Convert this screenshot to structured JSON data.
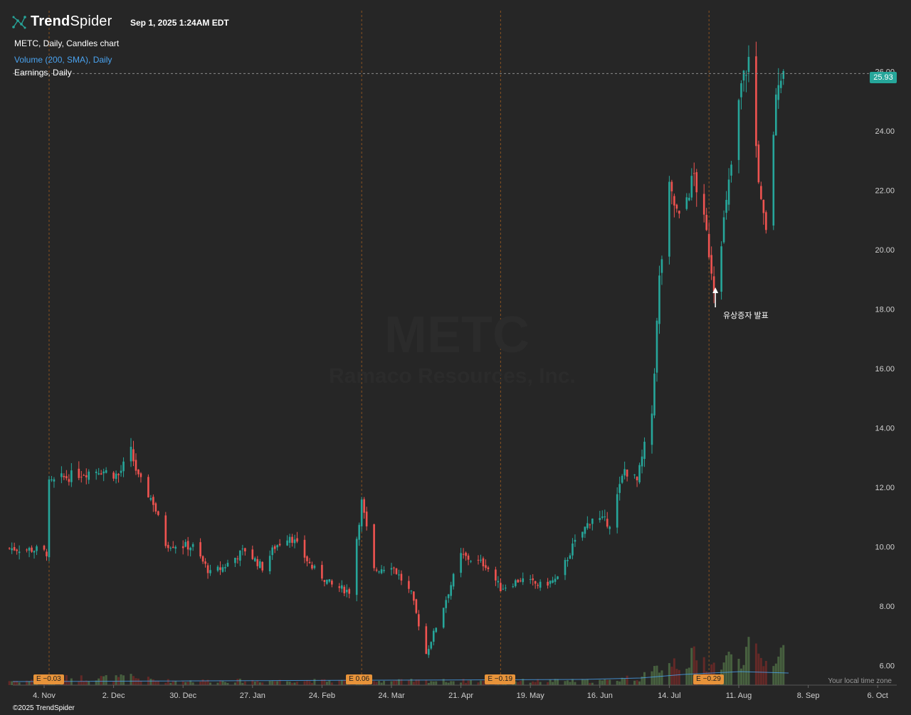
{
  "header": {
    "logo_bold": "Trend",
    "logo_light": "Spider",
    "datetime": "Sep 1, 2025 1:24AM EDT",
    "chart_title": "METC, Daily, Candles chart",
    "indicator_volume": "Volume (200, SMA), Daily",
    "indicator_earnings": "Earnings, Daily"
  },
  "watermark": {
    "symbol": "METC",
    "company": "Ramaco Resources, Inc."
  },
  "footer": {
    "copyright": "©2025 TrendSpider",
    "timezone_note": "Your local time zone"
  },
  "last_price_label": "25.93",
  "annotation": {
    "text": "유상증자 발표"
  },
  "earnings": [
    {
      "label": "E −0.03",
      "date": "2024-11-06"
    },
    {
      "label": "E 0.06",
      "date": "2025-03-12"
    },
    {
      "label": "E −0.19",
      "date": "2025-05-07"
    },
    {
      "label": "E −0.29",
      "date": "2025-07-30"
    }
  ],
  "colors": {
    "background": "#262626",
    "up": "#26a69a",
    "down": "#ef5350",
    "grid": "#3a3a3a",
    "earnings": "#e7933a",
    "volume_sma": "#4aa3f0"
  },
  "chart_data": {
    "type": "candlestick",
    "symbol": "METC",
    "interval": "Daily",
    "ylim": [
      5.6,
      27.2
    ],
    "yticks": [
      6,
      8,
      10,
      12,
      14,
      16,
      18,
      20,
      22,
      24,
      26
    ],
    "ytick_labels": [
      "6.00",
      "8.00",
      "10.00",
      "12.00",
      "14.00",
      "16.00",
      "18.00",
      "20.00",
      "22.00",
      "24.00",
      "26.00"
    ],
    "x_ticks": [
      {
        "label": "4. Nov",
        "date": "2024-11-04"
      },
      {
        "label": "2. Dec",
        "date": "2024-12-02"
      },
      {
        "label": "30. Dec",
        "date": "2024-12-30"
      },
      {
        "label": "27. Jan",
        "date": "2025-01-27"
      },
      {
        "label": "24. Feb",
        "date": "2025-02-24"
      },
      {
        "label": "24. Mar",
        "date": "2025-03-24"
      },
      {
        "label": "21. Apr",
        "date": "2025-04-21"
      },
      {
        "label": "19. May",
        "date": "2025-05-19"
      },
      {
        "label": "16. Jun",
        "date": "2025-06-16"
      },
      {
        "label": "14. Jul",
        "date": "2025-07-14"
      },
      {
        "label": "11. Aug",
        "date": "2025-08-11"
      },
      {
        "label": "8. Sep",
        "date": "2025-09-08"
      },
      {
        "label": "6. Oct",
        "date": "2025-10-06"
      }
    ],
    "x_start_date": "2024-10-21",
    "last_price": 25.93,
    "annotation_date": "2025-08-01",
    "closes": [
      {
        "d": "2024-10-21",
        "c": 9.95
      },
      {
        "d": "2024-11-01",
        "c": 9.9
      },
      {
        "d": "2024-11-05",
        "c": 9.8
      },
      {
        "d": "2024-11-06",
        "c": 12.1
      },
      {
        "d": "2024-11-11",
        "c": 12.3
      },
      {
        "d": "2024-11-20",
        "c": 12.5
      },
      {
        "d": "2024-11-26",
        "c": 12.6
      },
      {
        "d": "2024-12-04",
        "c": 12.4
      },
      {
        "d": "2024-12-09",
        "c": 13.2
      },
      {
        "d": "2024-12-12",
        "c": 12.3
      },
      {
        "d": "2024-12-18",
        "c": 11.5
      },
      {
        "d": "2024-12-23",
        "c": 10.1
      },
      {
        "d": "2025-01-03",
        "c": 10.0
      },
      {
        "d": "2025-01-10",
        "c": 9.1
      },
      {
        "d": "2025-01-15",
        "c": 9.3
      },
      {
        "d": "2025-01-24",
        "c": 9.9
      },
      {
        "d": "2025-01-31",
        "c": 9.3
      },
      {
        "d": "2025-02-05",
        "c": 10.0
      },
      {
        "d": "2025-02-11",
        "c": 10.4
      },
      {
        "d": "2025-02-20",
        "c": 9.3
      },
      {
        "d": "2025-02-28",
        "c": 8.7
      },
      {
        "d": "2025-03-07",
        "c": 8.5
      },
      {
        "d": "2025-03-12",
        "c": 11.5
      },
      {
        "d": "2025-03-17",
        "c": 9.2
      },
      {
        "d": "2025-03-24",
        "c": 9.4
      },
      {
        "d": "2025-04-01",
        "c": 8.4
      },
      {
        "d": "2025-04-07",
        "c": 6.4
      },
      {
        "d": "2025-04-14",
        "c": 8.0
      },
      {
        "d": "2025-04-21",
        "c": 9.7
      },
      {
        "d": "2025-05-01",
        "c": 9.4
      },
      {
        "d": "2025-05-07",
        "c": 8.6
      },
      {
        "d": "2025-05-15",
        "c": 8.9
      },
      {
        "d": "2025-05-23",
        "c": 8.7
      },
      {
        "d": "2025-05-30",
        "c": 8.9
      },
      {
        "d": "2025-06-05",
        "c": 10.0
      },
      {
        "d": "2025-06-13",
        "c": 11.0
      },
      {
        "d": "2025-06-20",
        "c": 10.8
      },
      {
        "d": "2025-06-26",
        "c": 12.6
      },
      {
        "d": "2025-07-01",
        "c": 12.2
      },
      {
        "d": "2025-07-07",
        "c": 14.5
      },
      {
        "d": "2025-07-10",
        "c": 19.0
      },
      {
        "d": "2025-07-14",
        "c": 22.0
      },
      {
        "d": "2025-07-18",
        "c": 21.0
      },
      {
        "d": "2025-07-24",
        "c": 22.5
      },
      {
        "d": "2025-07-29",
        "c": 20.5
      },
      {
        "d": "2025-08-01",
        "c": 18.8
      },
      {
        "d": "2025-08-06",
        "c": 21.5
      },
      {
        "d": "2025-08-12",
        "c": 25.5
      },
      {
        "d": "2025-08-15",
        "c": 26.4
      },
      {
        "d": "2025-08-20",
        "c": 21.5
      },
      {
        "d": "2025-08-22",
        "c": 20.5
      },
      {
        "d": "2025-08-25",
        "c": 24.0
      },
      {
        "d": "2025-08-27",
        "c": 25.9
      },
      {
        "d": "2025-08-29",
        "c": 25.93
      }
    ]
  }
}
